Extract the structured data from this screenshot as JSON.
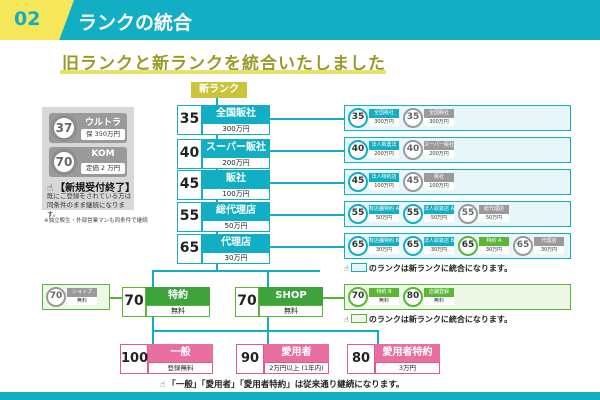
{
  "header": {
    "number": "02",
    "title": "ランクの統合"
  },
  "subtitle": "旧ランクと新ランクを統合いたしました",
  "new_rank_label": "新ランク",
  "old_panel": {
    "items": [
      {
        "num": "37",
        "name": "ウルトラ販社",
        "cond": "保 350万円"
      },
      {
        "num": "70",
        "name": "KOM",
        "cond": "定価 2 万円"
      }
    ],
    "closed_label": "【新規受付終了】",
    "note": "既にご登録をされている方は同条件のまま継続になります。",
    "footnote": "※独立販生・外部営業マンも同条件で継続"
  },
  "new_ranks": [
    {
      "num": "35",
      "name": "全国販社",
      "cond": "300万円"
    },
    {
      "num": "40",
      "name": "スーパー販社",
      "cond": "200万円"
    },
    {
      "num": "45",
      "name": "販社",
      "cond": "100万円"
    },
    {
      "num": "55",
      "name": "総代理店",
      "cond": "50万円"
    },
    {
      "num": "65",
      "name": "代理店",
      "cond": "30万円"
    }
  ],
  "right_rows": [
    [
      {
        "num": "35",
        "name": "全国販社",
        "val": "300万円",
        "style": "b"
      },
      {
        "num": "35",
        "name": "全国販社",
        "val": "300万円",
        "style": "gr"
      }
    ],
    [
      {
        "num": "40",
        "name": "法人新農法",
        "val": "200万円",
        "style": "b"
      },
      {
        "num": "40",
        "name": "スーパー販社",
        "val": "200万円",
        "style": "gr"
      }
    ],
    [
      {
        "num": "45",
        "name": "法人特約店",
        "val": "100万円",
        "style": "b"
      },
      {
        "num": "45",
        "name": "販社",
        "val": "100万円",
        "style": "gr"
      }
    ],
    [
      {
        "num": "55",
        "name": "有店舗特約 A",
        "val": "50万円",
        "style": "b"
      },
      {
        "num": "55",
        "name": "法人取扱店 A",
        "val": "50万円",
        "style": "b"
      },
      {
        "num": "55",
        "name": "総代理店",
        "val": "50万円",
        "style": "gr"
      }
    ],
    [
      {
        "num": "65",
        "name": "有店舗特約 B",
        "val": "30万円",
        "style": "b"
      },
      {
        "num": "65",
        "name": "法人取扱店 B",
        "val": "30万円",
        "style": "b"
      },
      {
        "num": "65",
        "name": "特約 A",
        "val": "30万円",
        "style": "g"
      },
      {
        "num": "65",
        "name": "代理店",
        "val": "30万円",
        "style": "gr"
      }
    ]
  ],
  "note_blue": "のランクは新ランクに統合になります。",
  "note_green": "のランクは新ランクに統合になります。",
  "green_ranks": [
    {
      "num": "70",
      "name": "特約",
      "cond": "無料"
    },
    {
      "num": "70",
      "name": "SHOP",
      "cond": "無料"
    }
  ],
  "shop_old": {
    "num": "70",
    "name": "ショップ",
    "val": "無料"
  },
  "shop_right": [
    {
      "num": "70",
      "name": "特約 B",
      "val": "無料",
      "style": "g"
    },
    {
      "num": "80",
      "name": "店舗登録",
      "val": "無料",
      "style": "g"
    }
  ],
  "pink_ranks": [
    {
      "num": "100",
      "name": "一般",
      "cond": "登録無料"
    },
    {
      "num": "90",
      "name": "愛用者",
      "cond": "2万円以上 (1年内)"
    },
    {
      "num": "80",
      "name": "愛用者特約",
      "cond": "3万円"
    }
  ],
  "bottom_note": "「一般」「愛用者」「愛用者特約」は従来通り継続になります。",
  "colors": {
    "teal": "#12aec3",
    "green": "#5bb536",
    "pink": "#e96fa0",
    "yellow": "#f6e65a",
    "gray": "#9a9a9a"
  }
}
